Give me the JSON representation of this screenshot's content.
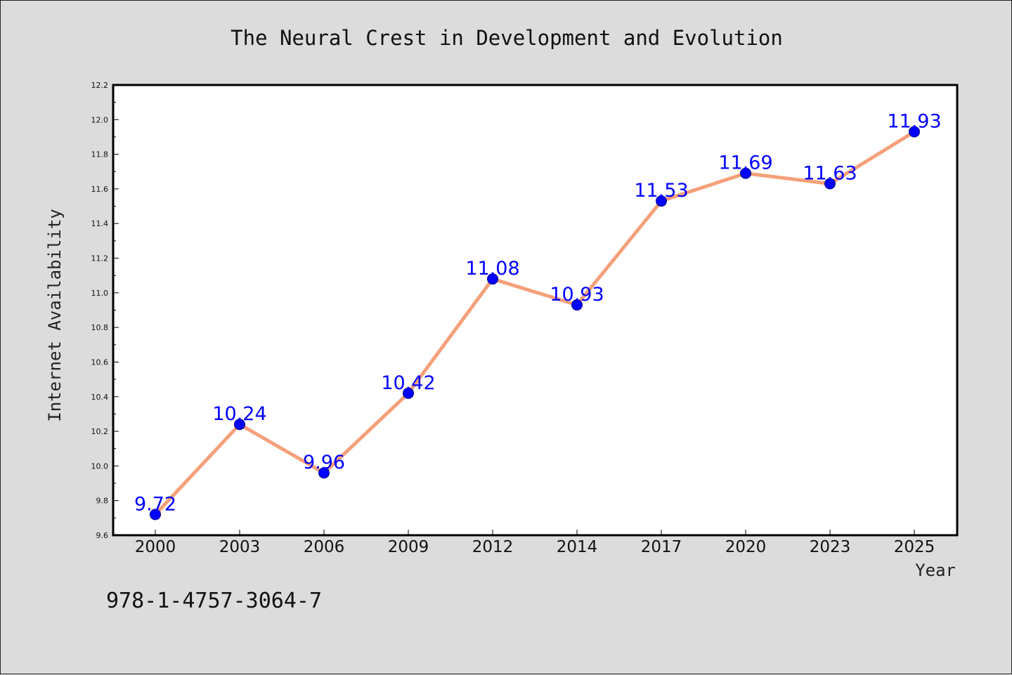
{
  "chart_data": {
    "type": "line",
    "title": "The Neural Crest in Development and Evolution",
    "xlabel": "Year",
    "ylabel": "Internet Availability",
    "categories": [
      "2000",
      "2003",
      "2006",
      "2009",
      "2012",
      "2014",
      "2017",
      "2020",
      "2023",
      "2025"
    ],
    "series": [
      {
        "values": [
          9.72,
          10.24,
          9.96,
          10.42,
          11.08,
          10.93,
          11.53,
          11.69,
          11.63,
          11.93
        ],
        "data_labels": [
          "9.72",
          "10.24",
          "9.96",
          "10.42",
          "11.08",
          "10.93",
          "11.53",
          "11.69",
          "11.63",
          "11.93"
        ]
      }
    ],
    "ylim": [
      9.6,
      12.2
    ],
    "yticks": [
      "9.6",
      "9.8",
      "10.0",
      "10.2",
      "10.4",
      "10.6",
      "10.8",
      "11.0",
      "11.2",
      "11.4",
      "11.6",
      "11.8",
      "12.0",
      "12.2"
    ],
    "grid": false,
    "legend": "none",
    "footer_text": "978-1-4757-3064-7",
    "colors": {
      "line": "#f4a07a",
      "marker_fill": "#0000ff",
      "marker_edge": "#000080",
      "data_label": "#0000ff",
      "plot_background": "#ffffff",
      "figure_background": "#dcdcdc"
    }
  }
}
